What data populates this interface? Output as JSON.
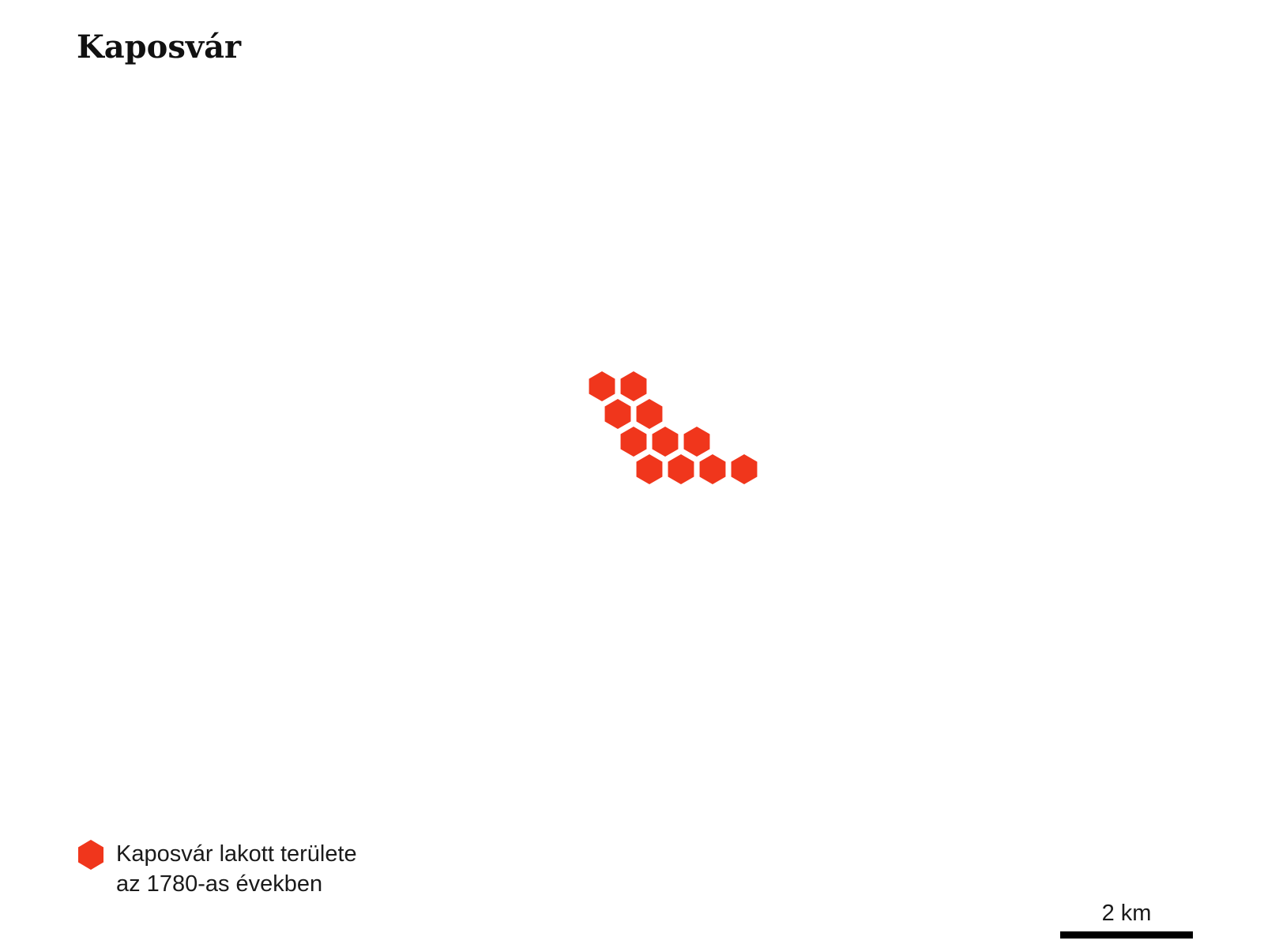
{
  "map": {
    "title": "Kaposvár",
    "fill_color": "#f0361c",
    "hex_cells": [
      {
        "row": 0,
        "col": 0
      },
      {
        "row": 0,
        "col": 1
      },
      {
        "row": 1,
        "col": 0
      },
      {
        "row": 1,
        "col": 1
      },
      {
        "row": 2,
        "col": 0
      },
      {
        "row": 2,
        "col": 1
      },
      {
        "row": 2,
        "col": 2
      },
      {
        "row": 3,
        "col": 0
      },
      {
        "row": 3,
        "col": 1
      },
      {
        "row": 3,
        "col": 2
      },
      {
        "row": 3,
        "col": 3
      }
    ]
  },
  "legend": {
    "line1": "Kaposvár lakott területe",
    "line2": "az 1780-as években",
    "icon": "hexagon-icon"
  },
  "scale": {
    "label": "2 km"
  }
}
